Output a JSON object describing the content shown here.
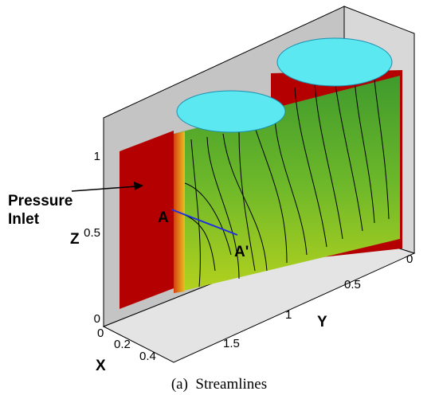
{
  "figure": {
    "caption": "(a)  Streamlines",
    "annotation": {
      "line1": "Pressure",
      "line2": "Inlet"
    },
    "section": {
      "start": "A",
      "end": "A'"
    },
    "axes": {
      "z": {
        "label": "Z",
        "ticks": [
          1,
          0.5,
          0
        ]
      },
      "y": {
        "label": "Y",
        "ticks": [
          0,
          0.5,
          1,
          1.5
        ]
      },
      "x": {
        "label": "X",
        "ticks": [
          0,
          0.2,
          0.4
        ]
      }
    }
  }
}
